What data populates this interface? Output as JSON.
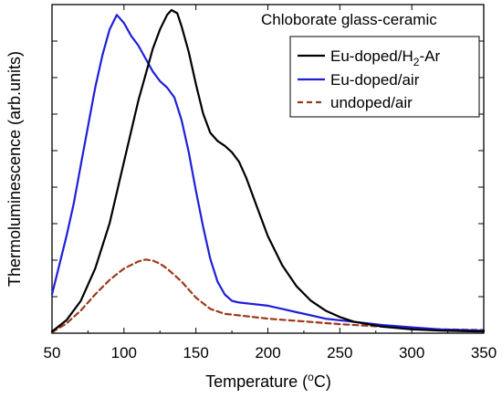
{
  "chart_data": {
    "type": "line",
    "title": "",
    "annotation": "Chloborate glass-ceramic",
    "xlabel": "Temperature (",
    "xlabel_sup": "o",
    "xlabel_unit": "C)",
    "ylabel": "Thermoluminescence (arb.units)",
    "xlim": [
      50,
      350
    ],
    "ylim": [
      0,
      1.0
    ],
    "x_ticks": [
      "50",
      "100",
      "150",
      "200",
      "250",
      "300",
      "350"
    ],
    "y_ticks_labeled": false,
    "grid": false,
    "legend_position": "top-right",
    "series": [
      {
        "name": "Eu-doped/H2-Ar",
        "legend_main": "Eu-doped",
        "legend_slash": "/",
        "legend_h": "H",
        "legend_sub": "2",
        "legend_tail": "-Ar",
        "color": "#000000",
        "dash": "solid",
        "x": [
          50,
          60,
          70,
          80,
          90,
          100,
          110,
          120,
          125,
          130,
          133,
          137,
          140,
          145,
          150,
          155,
          160,
          165,
          170,
          175,
          180,
          185,
          190,
          195,
          200,
          210,
          220,
          230,
          240,
          250,
          260,
          280,
          300,
          320,
          350
        ],
        "y": [
          0.005,
          0.04,
          0.1,
          0.2,
          0.34,
          0.53,
          0.72,
          0.88,
          0.94,
          0.985,
          1.0,
          0.99,
          0.95,
          0.87,
          0.77,
          0.68,
          0.62,
          0.595,
          0.58,
          0.56,
          0.53,
          0.48,
          0.42,
          0.36,
          0.3,
          0.21,
          0.145,
          0.1,
          0.07,
          0.05,
          0.035,
          0.02,
          0.012,
          0.008,
          0.005
        ]
      },
      {
        "name": "Eu-doped/air",
        "legend_main": "Eu-doped",
        "legend_slash": "/",
        "legend_tail": "air",
        "color": "#1f1fd9",
        "dash": "solid",
        "x": [
          50,
          55,
          60,
          65,
          70,
          75,
          80,
          85,
          90,
          95,
          100,
          105,
          110,
          115,
          120,
          125,
          130,
          135,
          140,
          145,
          150,
          155,
          160,
          165,
          170,
          175,
          180,
          190,
          200,
          210,
          220,
          230,
          240,
          260,
          280,
          300,
          320,
          350
        ],
        "y": [
          0.12,
          0.21,
          0.3,
          0.4,
          0.52,
          0.64,
          0.76,
          0.86,
          0.94,
          0.985,
          0.96,
          0.92,
          0.89,
          0.85,
          0.81,
          0.78,
          0.76,
          0.73,
          0.66,
          0.56,
          0.44,
          0.33,
          0.23,
          0.16,
          0.12,
          0.1,
          0.095,
          0.09,
          0.085,
          0.075,
          0.065,
          0.055,
          0.045,
          0.035,
          0.025,
          0.018,
          0.012,
          0.008
        ]
      },
      {
        "name": "undoped/air",
        "legend_main": "undoped",
        "legend_slash": "/",
        "legend_tail": "air",
        "color": "#9b3a1a",
        "dash": "dashed",
        "x": [
          50,
          60,
          70,
          80,
          90,
          100,
          110,
          115,
          120,
          125,
          130,
          140,
          150,
          160,
          170,
          180,
          200,
          220,
          250,
          280,
          300,
          320,
          350
        ],
        "y": [
          0.003,
          0.03,
          0.07,
          0.12,
          0.165,
          0.2,
          0.222,
          0.228,
          0.225,
          0.215,
          0.2,
          0.16,
          0.11,
          0.075,
          0.06,
          0.055,
          0.045,
          0.038,
          0.028,
          0.02,
          0.015,
          0.012,
          0.01
        ]
      }
    ]
  }
}
